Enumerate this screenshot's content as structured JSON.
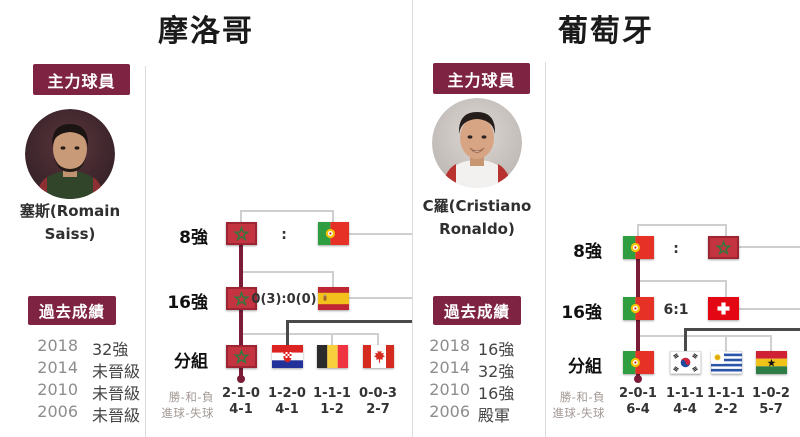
{
  "colors": {
    "accent_maroon": "#7e2442",
    "winner_path": "#7a1c38",
    "bracket_line": "#cfcfcf",
    "crossover_line": "#4a4a4a",
    "year_text": "#8d8d8d",
    "stat_label_text": "#a39a95",
    "value_text": "#333333"
  },
  "left": {
    "title": "摩洛哥",
    "key_player_label": "主力球員",
    "player_photo": "romain-saiss-portrait",
    "player_name": "塞斯(Romain Saiss)",
    "rounds": {
      "r8": "8強",
      "r16": "16強",
      "group": "分組"
    },
    "bracket": {
      "r8": {
        "team_flag": "morocco",
        "score": ":",
        "opponent_flag": "portugal"
      },
      "r16": {
        "team_flag": "morocco",
        "score": "0(3):0(0)",
        "opponent_flag": "spain"
      },
      "group_flags": [
        "morocco",
        "croatia",
        "belgium",
        "canada"
      ]
    },
    "stats": {
      "wdl_label": "勝-和-負",
      "goals_label": "進球-失球",
      "wdl": [
        "2-1-0",
        "1-2-0",
        "1-1-1",
        "0-0-3"
      ],
      "goals": [
        "4-1",
        "4-1",
        "1-2",
        "2-7"
      ]
    },
    "past": {
      "label": "過去成績",
      "rows": [
        {
          "year": "2018",
          "result": "32強"
        },
        {
          "year": "2014",
          "result": "未晉級"
        },
        {
          "year": "2010",
          "result": "未晉級"
        },
        {
          "year": "2006",
          "result": "未晉級"
        }
      ]
    }
  },
  "right": {
    "title": "葡萄牙",
    "key_player_label": "主力球員",
    "player_photo": "cristiano-ronaldo-portrait",
    "player_name": "C羅(Cristiano Ronaldo)",
    "rounds": {
      "r8": "8強",
      "r16": "16強",
      "group": "分組"
    },
    "bracket": {
      "r8": {
        "team_flag": "portugal",
        "score": ":",
        "opponent_flag": "morocco"
      },
      "r16": {
        "team_flag": "portugal",
        "score": "6:1",
        "opponent_flag": "switzerland"
      },
      "group_flags": [
        "portugal",
        "south-korea",
        "uruguay",
        "ghana"
      ]
    },
    "stats": {
      "wdl_label": "勝-和-負",
      "goals_label": "進球-失球",
      "wdl": [
        "2-0-1",
        "1-1-1",
        "1-1-1",
        "1-0-2"
      ],
      "goals": [
        "6-4",
        "4-4",
        "2-2",
        "5-7"
      ]
    },
    "past": {
      "label": "過去成績",
      "rows": [
        {
          "year": "2018",
          "result": "16強"
        },
        {
          "year": "2014",
          "result": "32強"
        },
        {
          "year": "2010",
          "result": "16強"
        },
        {
          "year": "2006",
          "result": "殿軍"
        }
      ]
    }
  }
}
